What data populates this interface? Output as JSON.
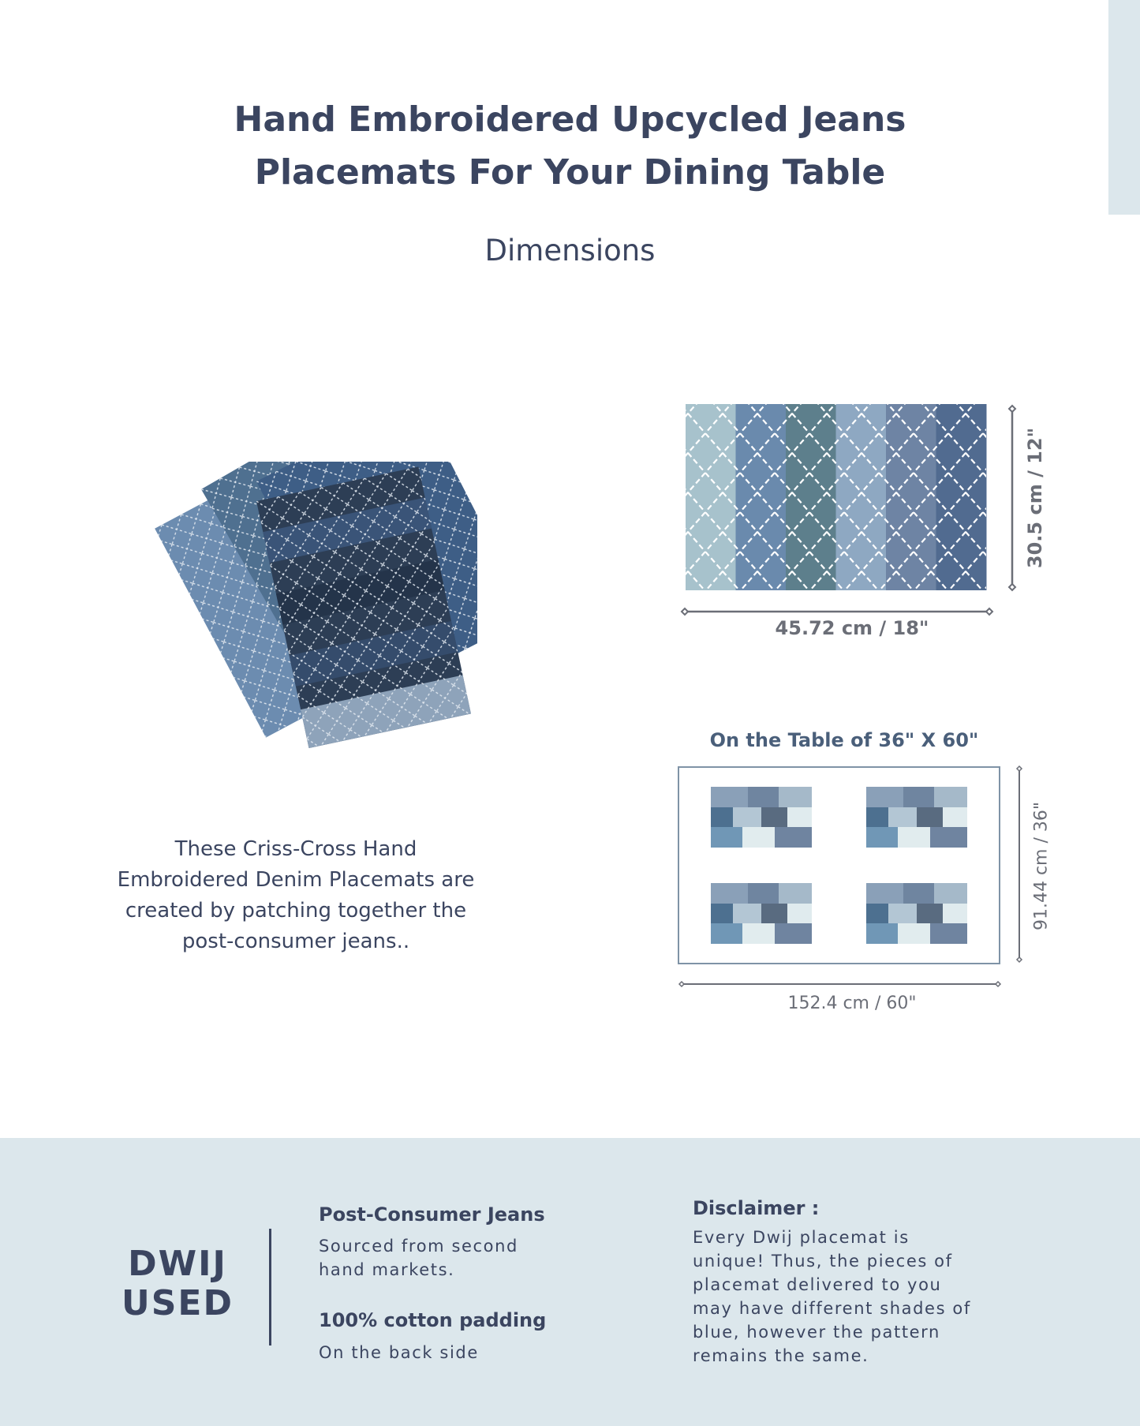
{
  "header": {
    "title_lines": [
      "Hand Embroidered Upcycled Jeans",
      "Placemats For Your Dining Table"
    ],
    "subtitle": "Dimensions"
  },
  "description": [
    "These Criss-Cross Hand",
    "Embroidered Denim Placemats are",
    "created by patching together the",
    "post-consumer jeans.."
  ],
  "placemat_diagram": {
    "width_label": "45.72 cm / 18\"",
    "height_label": "30.5 cm / 12\"",
    "stripe_colors": [
      "#a7c2cc",
      "#6a8aad",
      "#5d7f8c",
      "#8ea8c2",
      "#6e84a4",
      "#516b90"
    ]
  },
  "table_diagram": {
    "title": "On the Table of 36\" X 60\"",
    "width_label": "152.4 cm / 60\"",
    "height_label": "91.44 cm / 36\"",
    "placemat_count": 4
  },
  "footer": {
    "brand_lines": [
      "DWIJ",
      "USED"
    ],
    "feature1_title": "Post-Consumer Jeans",
    "feature1_text": [
      "Sourced from second",
      "hand markets."
    ],
    "feature2_title": "100% cotton padding",
    "feature2_text": "On the back side",
    "disclaimer_title": "Disclaimer :",
    "disclaimer_text": [
      "Every Dwij placemat is",
      "unique! Thus, the pieces of",
      "placemat delivered to you",
      "may have different shades of",
      "blue, however the pattern",
      "remains the same."
    ]
  },
  "colors": {
    "text": "#3b4560",
    "footer_bg": "#dce7ec",
    "accent": "#4a5f7a"
  }
}
